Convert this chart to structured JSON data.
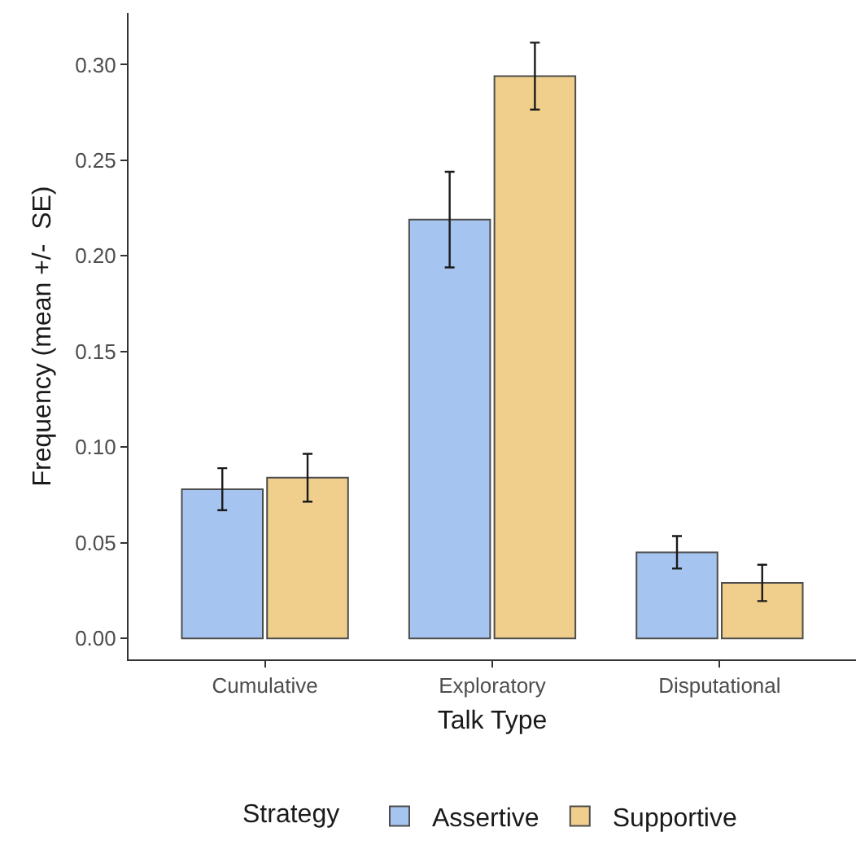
{
  "chart_data": {
    "type": "bar",
    "xlabel": "Talk Type",
    "ylabel": "Frequency (mean +/-  SE)",
    "legend_title": "Strategy",
    "categories": [
      "Cumulative",
      "Exploratory",
      "Disputational"
    ],
    "series": [
      {
        "name": "Assertive",
        "color": "#a6c4f0",
        "values": [
          0.078,
          0.219,
          0.045
        ],
        "errors": [
          0.011,
          0.025,
          0.0085
        ]
      },
      {
        "name": "Supportive",
        "color": "#f0cf8c",
        "values": [
          0.084,
          0.294,
          0.029
        ],
        "errors": [
          0.0125,
          0.0175,
          0.0095
        ]
      }
    ],
    "ylim": [
      -0.011,
      0.327
    ],
    "yticks": [
      {
        "value": 0,
        "label": "0.00"
      },
      {
        "value": 0.05,
        "label": "0.05"
      },
      {
        "value": 0.1,
        "label": "0.10"
      },
      {
        "value": 0.15,
        "label": "0.15"
      },
      {
        "value": 0.2,
        "label": "0.20"
      },
      {
        "value": 0.25,
        "label": "0.25"
      },
      {
        "value": 0.3,
        "label": "0.30"
      }
    ],
    "grid": false,
    "legend": "bottom"
  }
}
